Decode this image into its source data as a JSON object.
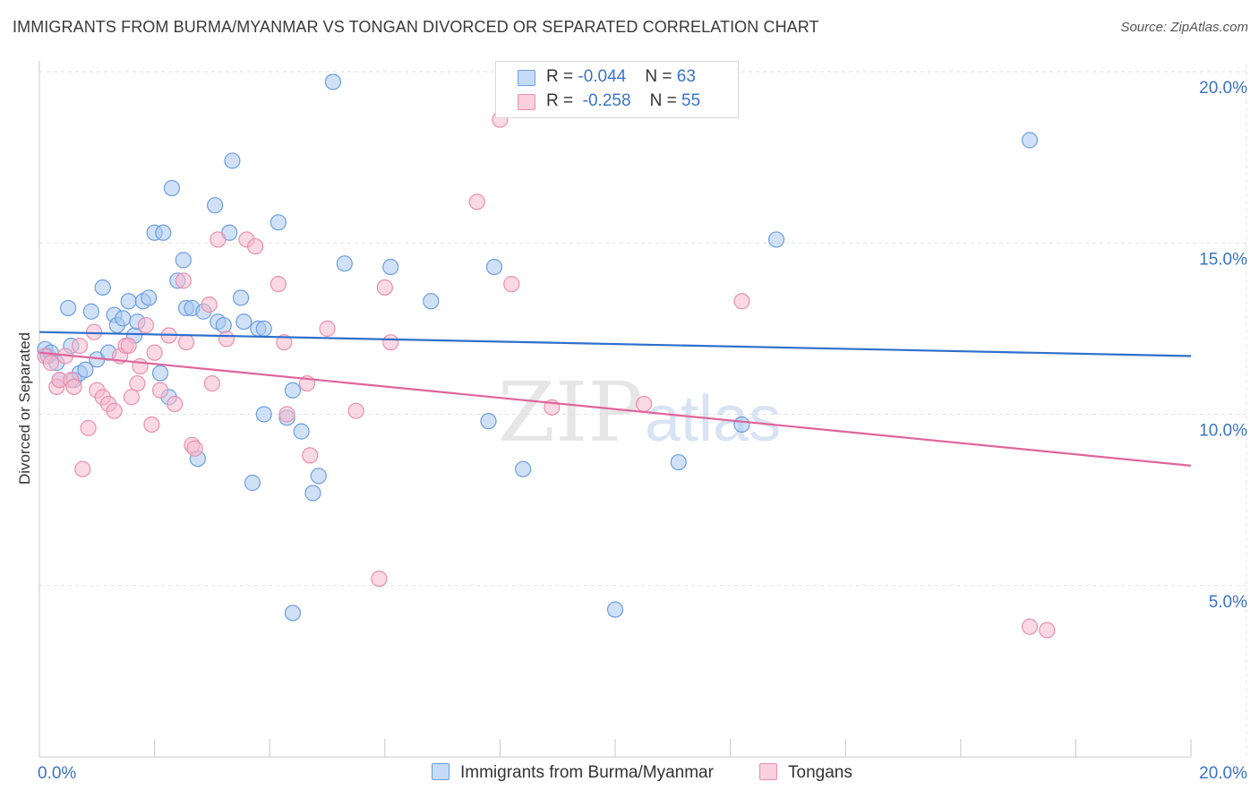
{
  "title": "IMMIGRANTS FROM BURMA/MYANMAR VS TONGAN DIVORCED OR SEPARATED CORRELATION CHART",
  "source": "Source: ZipAtlas.com",
  "colors": {
    "blue_fill": "#a9c8f0",
    "blue_stroke": "#6c9ee0",
    "blue_line": "#2f6fcb",
    "pink_fill": "#f7b9cd",
    "pink_stroke": "#ea8fae",
    "pink_line": "#e0649a",
    "tick_text": "#3a74c8",
    "grid": "#e3e3e3"
  },
  "legend": {
    "rows": [
      {
        "r_label": "R = ",
        "r_value": "-0.044",
        "n_label": "N = ",
        "n_value": "63"
      },
      {
        "r_label": "R = ",
        "r_value": " -0.258",
        "n_label": "N = ",
        "n_value": "55"
      }
    ]
  },
  "bottom_legend": {
    "series1": "Immigrants from Burma/Myanmar",
    "series2": "Tongans"
  },
  "watermark": {
    "zip": "ZIP",
    "atlas": "atlas"
  },
  "chart_data": {
    "type": "scatter",
    "title": "IMMIGRANTS FROM BURMA/MYANMAR VS TONGAN DIVORCED OR SEPARATED CORRELATION CHART",
    "xlabel": "",
    "ylabel": "Divorced or Separated",
    "xlim": [
      0,
      20
    ],
    "ylim": [
      0,
      20.5
    ],
    "x_tick_labels": [
      {
        "value": 0,
        "label": "0.0%"
      },
      {
        "value": 20,
        "label": "20.0%"
      }
    ],
    "y_tick_labels": [
      {
        "value": 5,
        "label": "5.0%"
      },
      {
        "value": 10,
        "label": "10.0%"
      },
      {
        "value": 15,
        "label": "15.0%"
      },
      {
        "value": 20,
        "label": "20.0%"
      }
    ],
    "grid": true,
    "legend_position": "top-center",
    "series": [
      {
        "name": "Immigrants from Burma/Myanmar",
        "R": -0.044,
        "N": 63,
        "trend": [
          [
            0,
            12.4
          ],
          [
            20,
            11.7
          ]
        ],
        "points": [
          [
            0.1,
            11.9
          ],
          [
            0.15,
            11.7
          ],
          [
            0.2,
            11.8
          ],
          [
            0.3,
            11.5
          ],
          [
            0.35,
            11.0
          ],
          [
            0.5,
            13.1
          ],
          [
            0.55,
            12.0
          ],
          [
            0.6,
            11.0
          ],
          [
            0.7,
            11.2
          ],
          [
            0.8,
            11.3
          ],
          [
            0.9,
            13.0
          ],
          [
            1.0,
            11.6
          ],
          [
            1.1,
            13.7
          ],
          [
            1.2,
            11.8
          ],
          [
            1.3,
            12.9
          ],
          [
            1.35,
            12.6
          ],
          [
            1.45,
            12.8
          ],
          [
            1.55,
            13.3
          ],
          [
            1.65,
            12.3
          ],
          [
            1.7,
            12.7
          ],
          [
            1.8,
            13.3
          ],
          [
            1.9,
            13.4
          ],
          [
            2.0,
            15.3
          ],
          [
            2.1,
            11.2
          ],
          [
            2.15,
            15.3
          ],
          [
            2.25,
            10.5
          ],
          [
            2.3,
            16.6
          ],
          [
            2.4,
            13.9
          ],
          [
            2.5,
            14.5
          ],
          [
            2.55,
            13.1
          ],
          [
            2.65,
            13.1
          ],
          [
            2.75,
            8.7
          ],
          [
            2.85,
            13.0
          ],
          [
            3.05,
            16.1
          ],
          [
            3.1,
            12.7
          ],
          [
            3.2,
            12.6
          ],
          [
            3.3,
            15.3
          ],
          [
            3.35,
            17.4
          ],
          [
            3.5,
            13.4
          ],
          [
            3.55,
            12.7
          ],
          [
            3.7,
            8.0
          ],
          [
            3.8,
            12.5
          ],
          [
            3.9,
            12.5
          ],
          [
            3.9,
            10.0
          ],
          [
            4.15,
            15.6
          ],
          [
            4.3,
            9.9
          ],
          [
            4.4,
            10.7
          ],
          [
            4.4,
            4.2
          ],
          [
            4.55,
            9.5
          ],
          [
            4.75,
            7.7
          ],
          [
            4.85,
            8.2
          ],
          [
            5.1,
            19.7
          ],
          [
            5.3,
            14.4
          ],
          [
            6.1,
            14.3
          ],
          [
            6.8,
            13.3
          ],
          [
            7.8,
            9.8
          ],
          [
            7.9,
            14.3
          ],
          [
            8.4,
            8.4
          ],
          [
            10.0,
            4.3
          ],
          [
            11.1,
            8.6
          ],
          [
            12.2,
            9.7
          ],
          [
            12.8,
            15.1
          ],
          [
            17.2,
            18.0
          ]
        ]
      },
      {
        "name": "Tongans",
        "R": -0.258,
        "N": 55,
        "trend": [
          [
            0,
            11.8
          ],
          [
            20,
            8.5
          ]
        ],
        "points": [
          [
            0.1,
            11.7
          ],
          [
            0.2,
            11.5
          ],
          [
            0.3,
            10.8
          ],
          [
            0.35,
            11.0
          ],
          [
            0.45,
            11.7
          ],
          [
            0.55,
            11.0
          ],
          [
            0.6,
            10.8
          ],
          [
            0.7,
            12.0
          ],
          [
            0.75,
            8.4
          ],
          [
            0.85,
            9.6
          ],
          [
            0.95,
            12.4
          ],
          [
            1.0,
            10.7
          ],
          [
            1.1,
            10.5
          ],
          [
            1.2,
            10.3
          ],
          [
            1.3,
            10.1
          ],
          [
            1.4,
            11.7
          ],
          [
            1.5,
            12.0
          ],
          [
            1.55,
            12.0
          ],
          [
            1.6,
            10.5
          ],
          [
            1.7,
            10.9
          ],
          [
            1.75,
            11.4
          ],
          [
            1.85,
            12.6
          ],
          [
            1.95,
            9.7
          ],
          [
            2.0,
            11.8
          ],
          [
            2.1,
            10.7
          ],
          [
            2.25,
            12.3
          ],
          [
            2.35,
            10.3
          ],
          [
            2.5,
            13.9
          ],
          [
            2.55,
            12.1
          ],
          [
            2.65,
            9.1
          ],
          [
            2.7,
            9.0
          ],
          [
            2.95,
            13.2
          ],
          [
            3.0,
            10.9
          ],
          [
            3.1,
            15.1
          ],
          [
            3.25,
            12.2
          ],
          [
            3.6,
            15.1
          ],
          [
            3.75,
            14.9
          ],
          [
            4.15,
            13.8
          ],
          [
            4.25,
            12.1
          ],
          [
            4.3,
            10.0
          ],
          [
            4.65,
            10.9
          ],
          [
            4.7,
            8.8
          ],
          [
            5.0,
            12.5
          ],
          [
            5.5,
            10.1
          ],
          [
            5.9,
            5.2
          ],
          [
            6.0,
            13.7
          ],
          [
            6.1,
            12.1
          ],
          [
            7.6,
            16.2
          ],
          [
            8.0,
            18.6
          ],
          [
            8.2,
            13.8
          ],
          [
            8.9,
            10.2
          ],
          [
            10.5,
            10.3
          ],
          [
            12.2,
            13.3
          ],
          [
            17.2,
            3.8
          ],
          [
            17.5,
            3.7
          ]
        ]
      }
    ]
  }
}
